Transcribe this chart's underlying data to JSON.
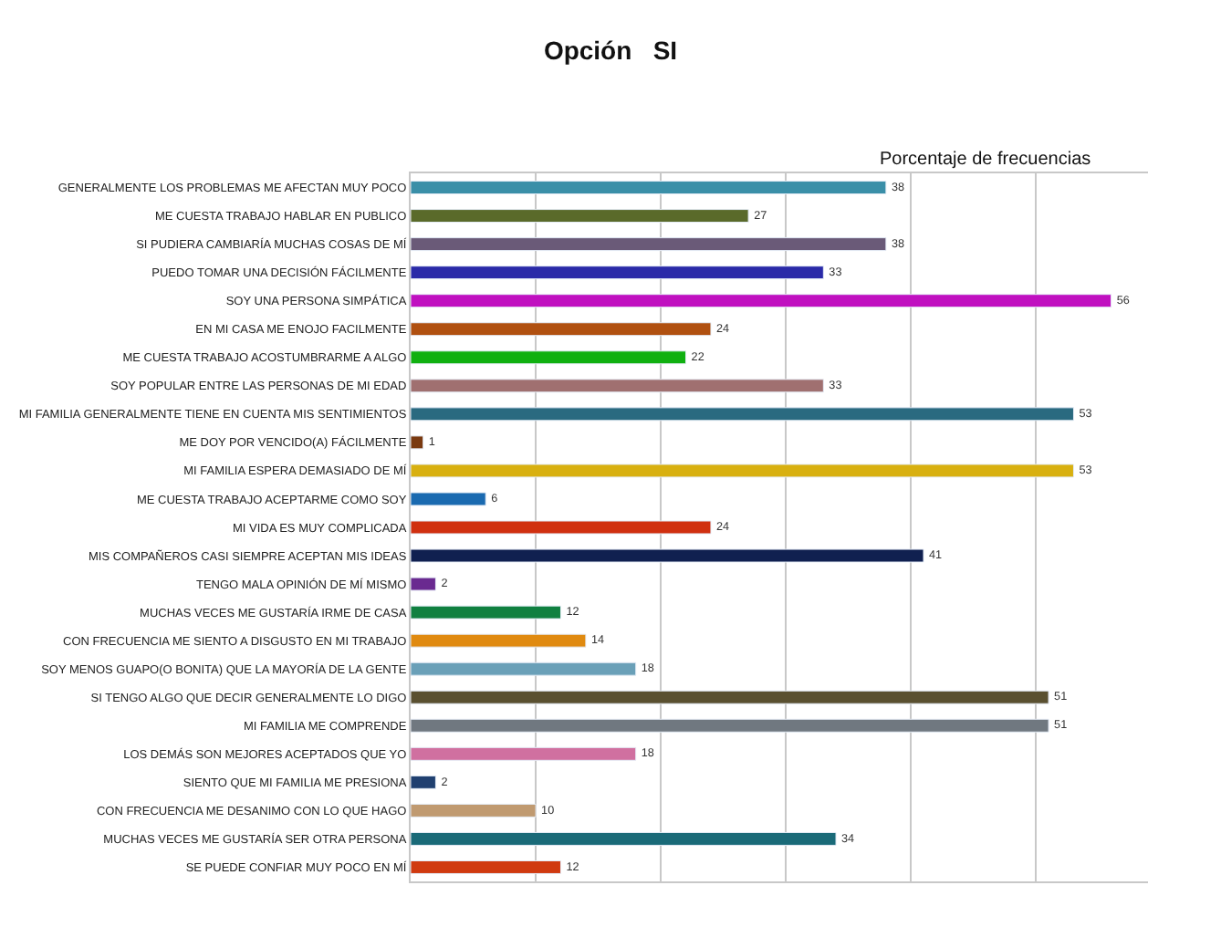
{
  "chart_data": {
    "type": "bar",
    "orientation": "horizontal",
    "title": "Opción   SI",
    "subtitle": "Porcentaje de frecuencias",
    "categories": [
      "GENERALMENTE LOS PROBLEMAS ME AFECTAN MUY POCO",
      "ME CUESTA TRABAJO HABLAR EN PUBLICO",
      "SI PUDIERA CAMBIARÍA MUCHAS COSAS DE MÍ",
      "PUEDO TOMAR UNA DECISIÓN FÁCILMENTE",
      "SOY UNA PERSONA SIMPÁTICA",
      "EN MI CASA ME ENOJO FACILMENTE",
      "ME CUESTA TRABAJO ACOSTUMBRARME A ALGO",
      "SOY POPULAR ENTRE LAS PERSONAS DE MI EDAD",
      "MI FAMILIA GENERALMENTE TIENE EN CUENTA MIS SENTIMIENTOS",
      "ME DOY POR VENCIDO(A) FÁCILMENTE",
      "MI FAMILIA ESPERA DEMASIADO DE MÍ",
      "ME CUESTA TRABAJO ACEPTARME COMO SOY",
      "MI VIDA ES MUY COMPLICADA",
      "MIS COMPAÑEROS CASI SIEMPRE ACEPTAN MIS IDEAS",
      "TENGO MALA OPINIÓN DE MÍ MISMO",
      "MUCHAS VECES ME GUSTARÍA IRME DE CASA",
      "CON FRECUENCIA ME SIENTO A DISGUSTO EN MI TRABAJO",
      "SOY MENOS GUAPO(O BONITA) QUE LA MAYORÍA DE LA GENTE",
      "SI TENGO ALGO QUE DECIR GENERALMENTE LO DIGO",
      "MI FAMILIA ME COMPRENDE",
      "LOS DEMÁS SON MEJORES ACEPTADOS QUE YO",
      "SIENTO QUE MI FAMILIA ME PRESIONA",
      "CON FRECUENCIA ME DESANIMO CON LO QUE HAGO",
      "MUCHAS VECES ME GUSTARÍA SER OTRA PERSONA",
      "SE PUEDE CONFIAR MUY POCO EN MÍ"
    ],
    "values": [
      38,
      27,
      38,
      33,
      56,
      24,
      22,
      33,
      53,
      1,
      53,
      6,
      24,
      41,
      2,
      12,
      14,
      18,
      51,
      51,
      18,
      2,
      10,
      34,
      12
    ],
    "colors": [
      "#3a8fa8",
      "#5a6a2a",
      "#6a5a78",
      "#2a2aa8",
      "#c010c0",
      "#b05010",
      "#10b010",
      "#a07070",
      "#2a6a80",
      "#7a3a10",
      "#d8b010",
      "#1a6ab0",
      "#d03010",
      "#102050",
      "#6a2a90",
      "#108040",
      "#e08a10",
      "#6aa0b8",
      "#5a5030",
      "#707880",
      "#d070a0",
      "#204070",
      "#c09a70",
      "#1a6a78",
      "#d03a10"
    ],
    "data_labels": true,
    "grid": "x",
    "tick_labels": "y"
  }
}
